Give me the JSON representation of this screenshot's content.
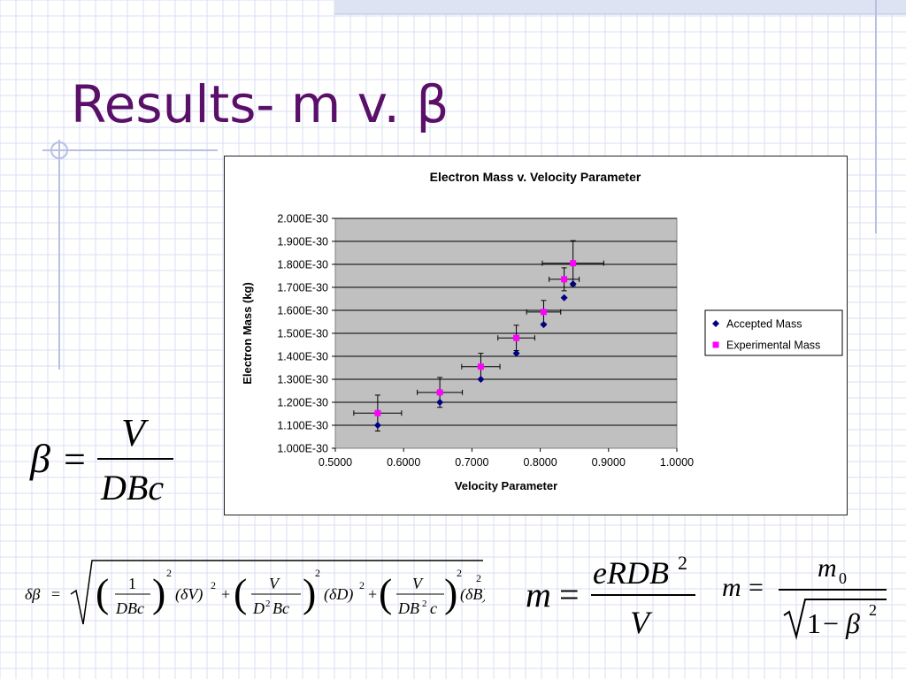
{
  "slide": {
    "title": "Results- m v. β",
    "accent_color": "#5a1068",
    "grid_color": "#d8dff2"
  },
  "chart_data": {
    "type": "scatter",
    "title": "Electron Mass v. Velocity Parameter",
    "xlabel": "Velocity Parameter",
    "ylabel": "Electron Mass (kg)",
    "xlim": [
      0.5,
      1.0
    ],
    "ylim": [
      1e-30,
      2e-30
    ],
    "x_ticks": [
      "0.5000",
      "0.6000",
      "0.7000",
      "0.8000",
      "0.9000",
      "1.0000"
    ],
    "y_ticks": [
      "1.000E-30",
      "1.100E-30",
      "1.200E-30",
      "1.300E-30",
      "1.400E-30",
      "1.500E-30",
      "1.600E-30",
      "1.700E-30",
      "1.800E-30",
      "1.900E-30",
      "2.000E-30"
    ],
    "grid": true,
    "legend_position": "right",
    "series": [
      {
        "name": "Accepted Mass",
        "color": "#000080",
        "marker": "diamond",
        "points": [
          {
            "x": 0.562,
            "y": 1.1e-30
          },
          {
            "x": 0.653,
            "y": 1.2e-30
          },
          {
            "x": 0.713,
            "y": 1.3e-30
          },
          {
            "x": 0.765,
            "y": 1.413e-30
          },
          {
            "x": 0.805,
            "y": 1.538e-30
          },
          {
            "x": 0.835,
            "y": 1.655e-30
          },
          {
            "x": 0.848,
            "y": 1.715e-30
          }
        ]
      },
      {
        "name": "Experimental Mass",
        "color": "#ff00ff",
        "marker": "square",
        "points": [
          {
            "x": 0.562,
            "y": 1.153e-30,
            "xerr": 0.035,
            "yerr": 7.8e-32
          },
          {
            "x": 0.653,
            "y": 1.243e-30,
            "xerr": 0.033,
            "yerr": 6.5e-32
          },
          {
            "x": 0.713,
            "y": 1.355e-30,
            "xerr": 0.028,
            "yerr": 5.8e-32
          },
          {
            "x": 0.765,
            "y": 1.48e-30,
            "xerr": 0.027,
            "yerr": 5.5e-32
          },
          {
            "x": 0.805,
            "y": 1.593e-30,
            "xerr": 0.025,
            "yerr": 5e-32
          },
          {
            "x": 0.835,
            "y": 1.735e-30,
            "xerr": 0.022,
            "yerr": 5e-32
          },
          {
            "x": 0.848,
            "y": 1.805e-30,
            "xerr": 0.045,
            "yerr": 9.8e-32
          }
        ]
      }
    ]
  },
  "equations": {
    "beta": {
      "lhs": "β",
      "eq": "=",
      "num": "V",
      "den": "DBc"
    },
    "m_exp": {
      "lhs": "m",
      "eq": "=",
      "num_a": "eRDB",
      "num_sup": "2",
      "den": "V"
    },
    "m_rel": {
      "lhs": "m",
      "eq": "=",
      "num": "m",
      "num_sub": "0",
      "one": "1",
      "minus": "−",
      "beta": "β",
      "sup": "2"
    },
    "dbeta": {
      "lhs": "δβ",
      "eq": "=",
      "t1_num": "1",
      "t1_den": "DBc",
      "t1_sup": "2",
      "t1_delta": "(δV)",
      "t1_delta_sup": "2",
      "plus": "+",
      "t2_num": "V",
      "t2_den_a": "D",
      "t2_den_sup": "2",
      "t2_den_b": "Bc",
      "t2_sup": "2",
      "t2_delta": "(δD)",
      "t2_delta_sup": "2",
      "t3_num": "V",
      "t3_den_a": "DB",
      "t3_den_sup": "2",
      "t3_den_b": "c",
      "t3_sup": "2",
      "t3_delta": "(δB)",
      "t3_delta_sup": "2"
    }
  }
}
